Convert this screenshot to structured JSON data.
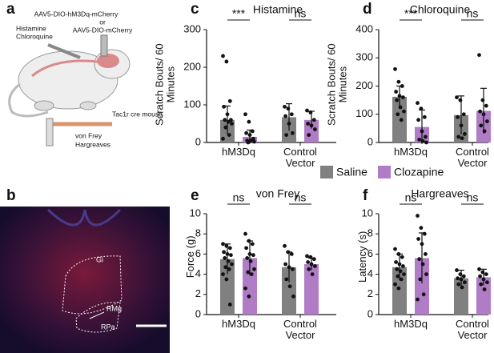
{
  "panel_labels": [
    "a",
    "b",
    "c",
    "d",
    "e",
    "f"
  ],
  "illustration": {
    "virus_1": "AAV5-DIO-hM3Dq-mCherry",
    "or": "or",
    "virus_2": "AAV5-DIO-mCherry",
    "drug_1": "Histamine",
    "drug_2": "Chloroquine",
    "mouse": "Tac1r cre mouse",
    "test_1": "von Frey",
    "test_2": "Hargreaves"
  },
  "image": {
    "regions": [
      "Gi",
      "RMg",
      "RPa"
    ]
  },
  "legend": [
    {
      "name": "Saline",
      "color": "#808080"
    },
    {
      "name": "Clozapine",
      "color": "#b07cc6"
    }
  ],
  "chart_data": [
    {
      "type": "bar",
      "title": "Histamine",
      "y_label": "Scratch Bouts/ 60 Minutes",
      "categories": [
        "hM3Dq",
        "Control Vector"
      ],
      "ylim": [
        0,
        300
      ],
      "yticks": [
        0,
        100,
        200,
        300
      ],
      "annotations": [
        "***",
        "ns"
      ],
      "series": [
        {
          "color": "#808080",
          "values": [
            60,
            67
          ],
          "errors": [
            37,
            36
          ],
          "points": [
            [
              230,
              215,
              110,
              95,
              75,
              60,
              60,
              55,
              50,
              40,
              20,
              10
            ],
            [
              95,
              90,
              75,
              70,
              50,
              25,
              20
            ]
          ]
        },
        {
          "color": "#b07cc6",
          "values": [
            15,
            60
          ],
          "errors": [
            18,
            23
          ],
          "points": [
            [
              75,
              55,
              30,
              25,
              20,
              10,
              5,
              5,
              2,
              0
            ],
            [
              85,
              80,
              60,
              50,
              45,
              35,
              20
            ]
          ]
        }
      ]
    },
    {
      "type": "bar",
      "title": "Chloroquine",
      "y_label": "Scratch Bouts/ 60 Minutes",
      "categories": [
        "hM3Dq",
        "Control Vector"
      ],
      "ylim": [
        0,
        400
      ],
      "yticks": [
        0,
        100,
        200,
        300,
        400
      ],
      "annotations": [
        "***",
        "ns"
      ],
      "series": [
        {
          "color": "#808080",
          "values": [
            162,
            97
          ],
          "errors": [
            38,
            68
          ],
          "points": [
            [
              260,
              215,
              200,
              180,
              165,
              160,
              150,
              125,
              110,
              100,
              80
            ],
            [
              160,
              150,
              100,
              90,
              60,
              30,
              20,
              15
            ]
          ]
        },
        {
          "color": "#b07cc6",
          "values": [
            55,
            112
          ],
          "errors": [
            60,
            80
          ],
          "points": [
            [
              140,
              120,
              90,
              80,
              40,
              20,
              10,
              5,
              0
            ],
            [
              310,
              150,
              130,
              110,
              100,
              75,
              60,
              40
            ]
          ]
        }
      ]
    },
    {
      "type": "bar",
      "title": "von Frey",
      "y_label": "Force (g)",
      "categories": [
        "hM3Dq",
        "Control Vector"
      ],
      "ylim": [
        0,
        10
      ],
      "yticks": [
        0,
        2,
        4,
        6,
        8,
        10
      ],
      "annotations": [
        "ns",
        "ns"
      ],
      "series": [
        {
          "color": "#808080",
          "values": [
            5.5,
            4.7
          ],
          "errors": [
            1.5,
            1.5
          ],
          "points": [
            [
              7.0,
              6.8,
              6.6,
              6.2,
              6.0,
              5.9,
              5.6,
              5.3,
              5.0,
              4.7,
              4.5,
              4.0,
              3.5,
              1.0
            ],
            [
              6.8,
              6.2,
              6.0,
              5.0,
              4.7,
              4.5,
              3.5,
              2.8,
              1.8
            ]
          ]
        },
        {
          "color": "#b07cc6",
          "values": [
            5.6,
            5.0
          ],
          "errors": [
            1.7,
            0.6
          ],
          "points": [
            [
              8.0,
              7.3,
              7.0,
              6.6,
              6.0,
              5.9,
              5.6,
              5.3,
              4.5,
              4.2,
              4.0,
              2.6,
              1.8
            ],
            [
              5.8,
              5.7,
              5.5,
              5.2,
              5.0,
              4.8,
              4.5,
              4.0
            ]
          ]
        }
      ]
    },
    {
      "type": "bar",
      "title": "Hargreaves",
      "y_label": "Latency (s)",
      "categories": [
        "hM3Dq",
        "Control Vector"
      ],
      "ylim": [
        0,
        10
      ],
      "yticks": [
        0,
        2,
        4,
        6,
        8,
        10
      ],
      "annotations": [
        "ns",
        "ns"
      ],
      "series": [
        {
          "color": "#808080",
          "values": [
            4.7,
            3.6
          ],
          "errors": [
            1.3,
            0.8
          ],
          "points": [
            [
              6.5,
              6.0,
              5.7,
              5.2,
              5.0,
              4.8,
              4.5,
              4.3,
              4.0,
              3.8,
              3.5,
              3.0,
              2.6
            ],
            [
              4.4,
              4.0,
              3.8,
              3.6,
              3.5,
              3.2,
              3.0,
              2.7
            ]
          ]
        },
        {
          "color": "#b07cc6",
          "values": [
            5.6,
            3.7
          ],
          "errors": [
            2.5,
            0.8
          ],
          "points": [
            [
              9.8,
              8.6,
              8.0,
              7.5,
              7.0,
              6.0,
              5.5,
              5.0,
              4.0,
              3.5,
              2.0,
              1.5
            ],
            [
              4.5,
              4.2,
              4.0,
              3.8,
              3.5,
              3.2,
              3.0,
              2.5
            ]
          ]
        }
      ]
    }
  ]
}
